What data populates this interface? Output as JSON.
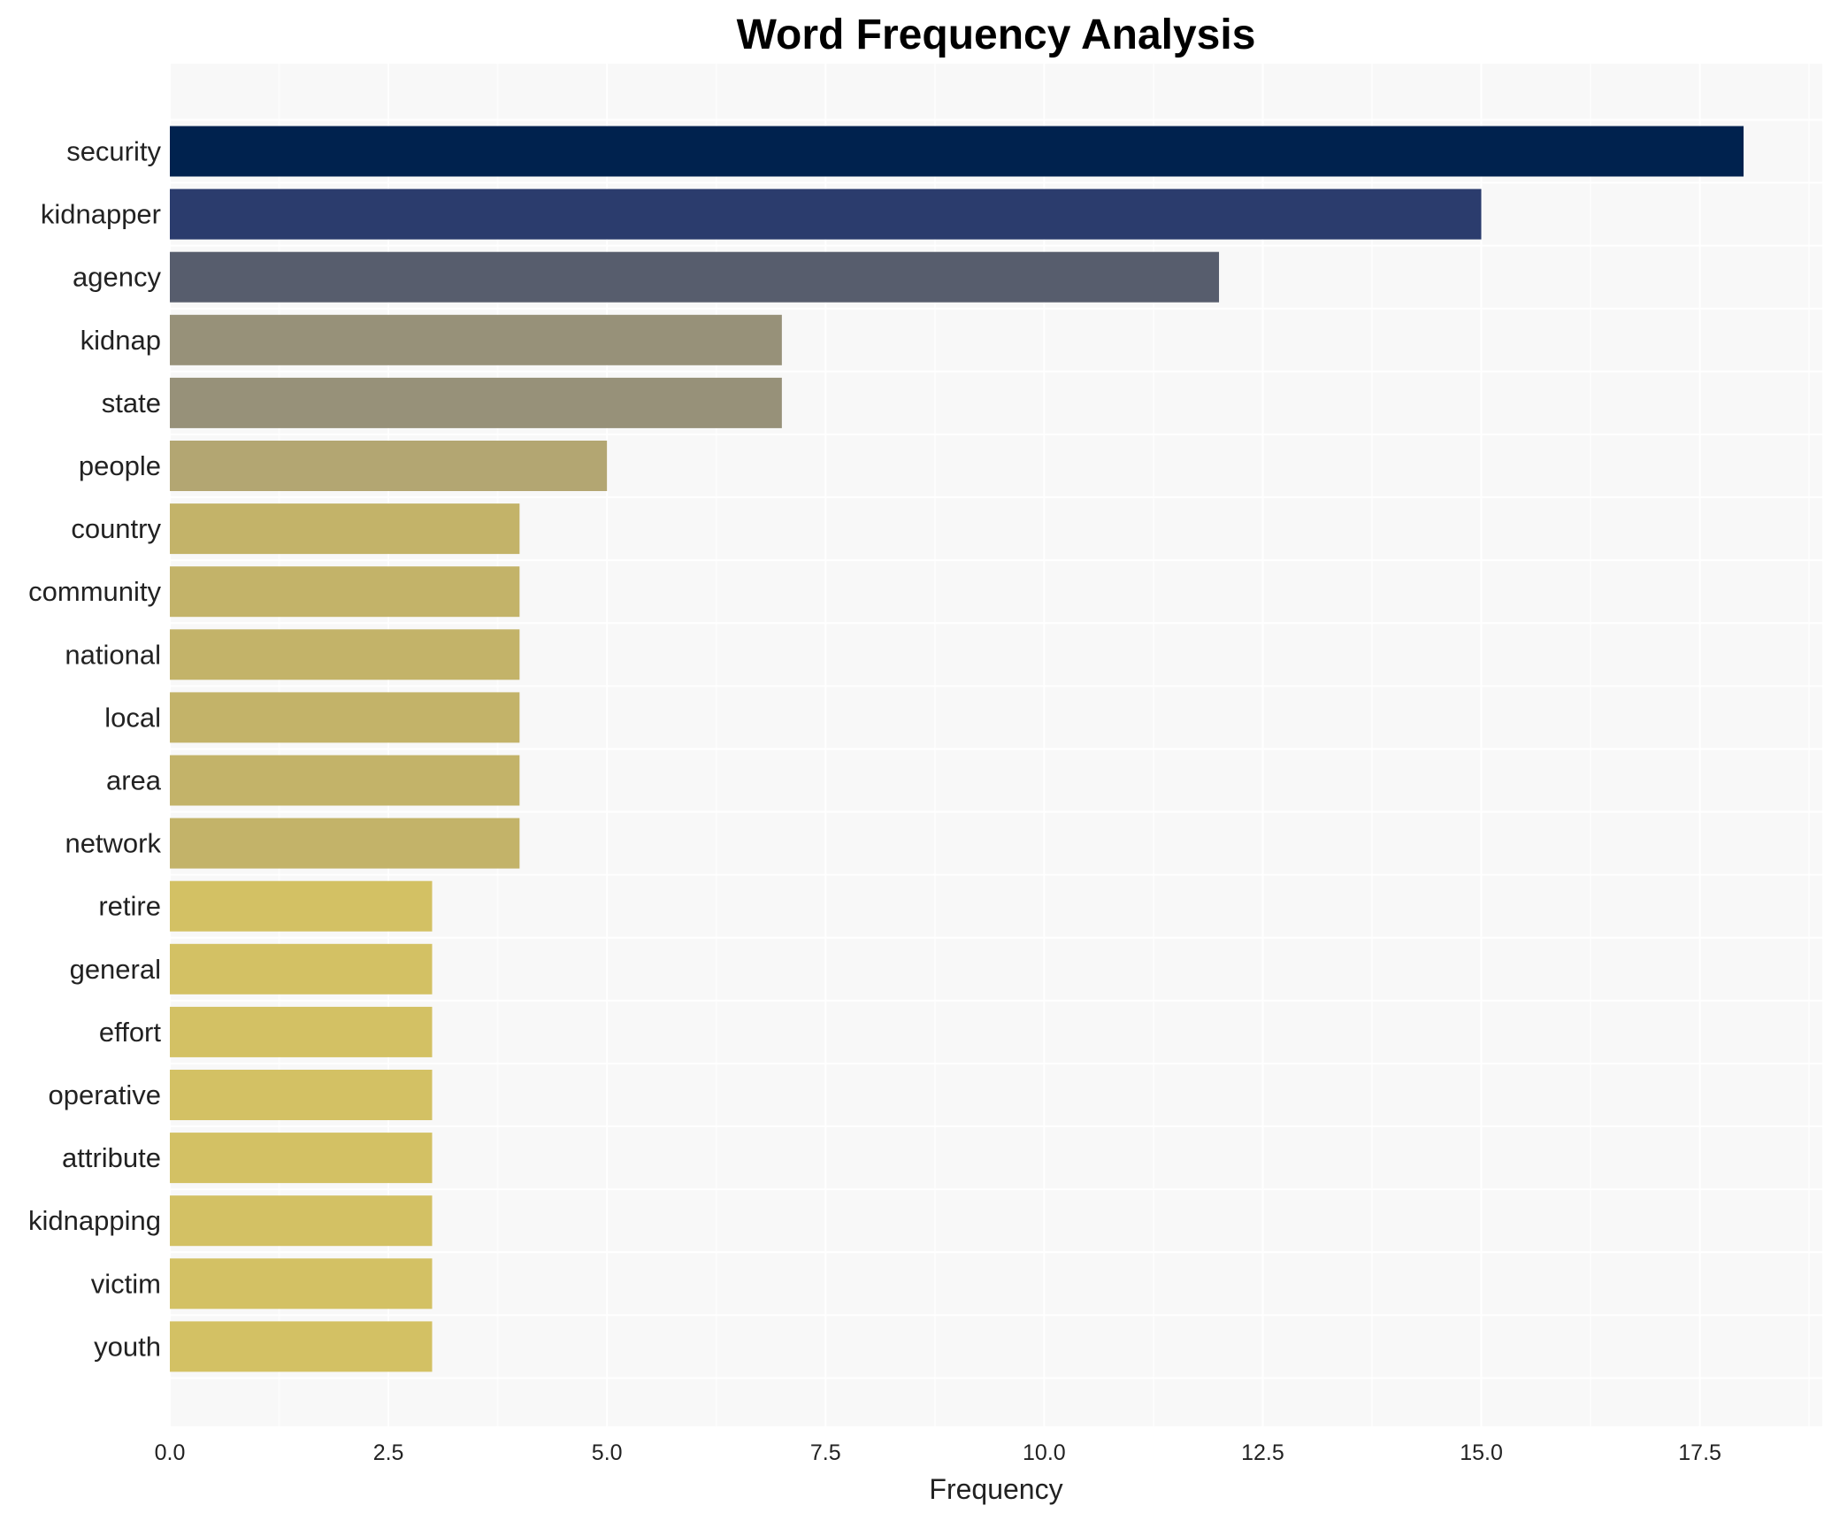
{
  "chart_data": {
    "type": "bar",
    "orientation": "horizontal",
    "title": "Word Frequency Analysis",
    "xlabel": "Frequency",
    "ylabel": "",
    "xlim": [
      0,
      18.9
    ],
    "xticks": [
      0.0,
      2.5,
      5.0,
      7.5,
      10.0,
      12.5,
      15.0,
      17.5
    ],
    "xtick_labels": [
      "0.0",
      "2.5",
      "5.0",
      "7.5",
      "10.0",
      "12.5",
      "15.0",
      "17.5"
    ],
    "grid": true,
    "categories": [
      "security",
      "kidnapper",
      "agency",
      "kidnap",
      "state",
      "people",
      "country",
      "community",
      "national",
      "local",
      "area",
      "network",
      "retire",
      "general",
      "effort",
      "operative",
      "attribute",
      "kidnapping",
      "victim",
      "youth"
    ],
    "values": [
      18,
      15,
      12,
      7,
      7,
      5,
      4,
      4,
      4,
      4,
      4,
      4,
      3,
      3,
      3,
      3,
      3,
      3,
      3,
      3
    ],
    "colors": [
      "#00224e",
      "#2b3c6d",
      "#575d6d",
      "#979179",
      "#979179",
      "#b3a672",
      "#c3b369",
      "#c3b369",
      "#c3b369",
      "#c3b369",
      "#c3b369",
      "#c3b369",
      "#d3c164",
      "#d3c164",
      "#d3c164",
      "#d3c164",
      "#d3c164",
      "#d3c164",
      "#d3c164",
      "#d3c164"
    ],
    "plot_background": "#f8f8f8"
  }
}
